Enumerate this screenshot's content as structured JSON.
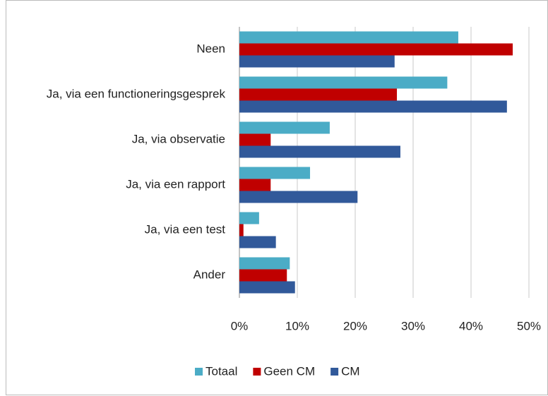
{
  "chart_data": {
    "type": "bar",
    "orientation": "horizontal",
    "categories": [
      "Neen",
      "Ja, via een functioneringsgesprek",
      "Ja, via observatie",
      "Ja, via een rapport",
      "Ja, via een test",
      "Ander"
    ],
    "series": [
      {
        "name": "Totaal",
        "color": "#4bacc6",
        "values": [
          37.8,
          35.9,
          15.6,
          12.2,
          3.4,
          8.7
        ]
      },
      {
        "name": "Geen CM",
        "color": "#c00000",
        "values": [
          47.2,
          27.2,
          5.4,
          5.4,
          0.7,
          8.2
        ]
      },
      {
        "name": "CM",
        "color": "#31599a",
        "values": [
          26.8,
          46.2,
          27.8,
          20.4,
          6.3,
          9.6
        ]
      }
    ],
    "xlim": [
      0,
      50
    ],
    "xticks": [
      {
        "value": 0,
        "label": "0%"
      },
      {
        "value": 10,
        "label": "10%"
      },
      {
        "value": 20,
        "label": "20%"
      },
      {
        "value": 30,
        "label": "30%"
      },
      {
        "value": 40,
        "label": "40%"
      },
      {
        "value": 50,
        "label": "50%"
      }
    ],
    "grid": true,
    "legend": "bottom"
  }
}
